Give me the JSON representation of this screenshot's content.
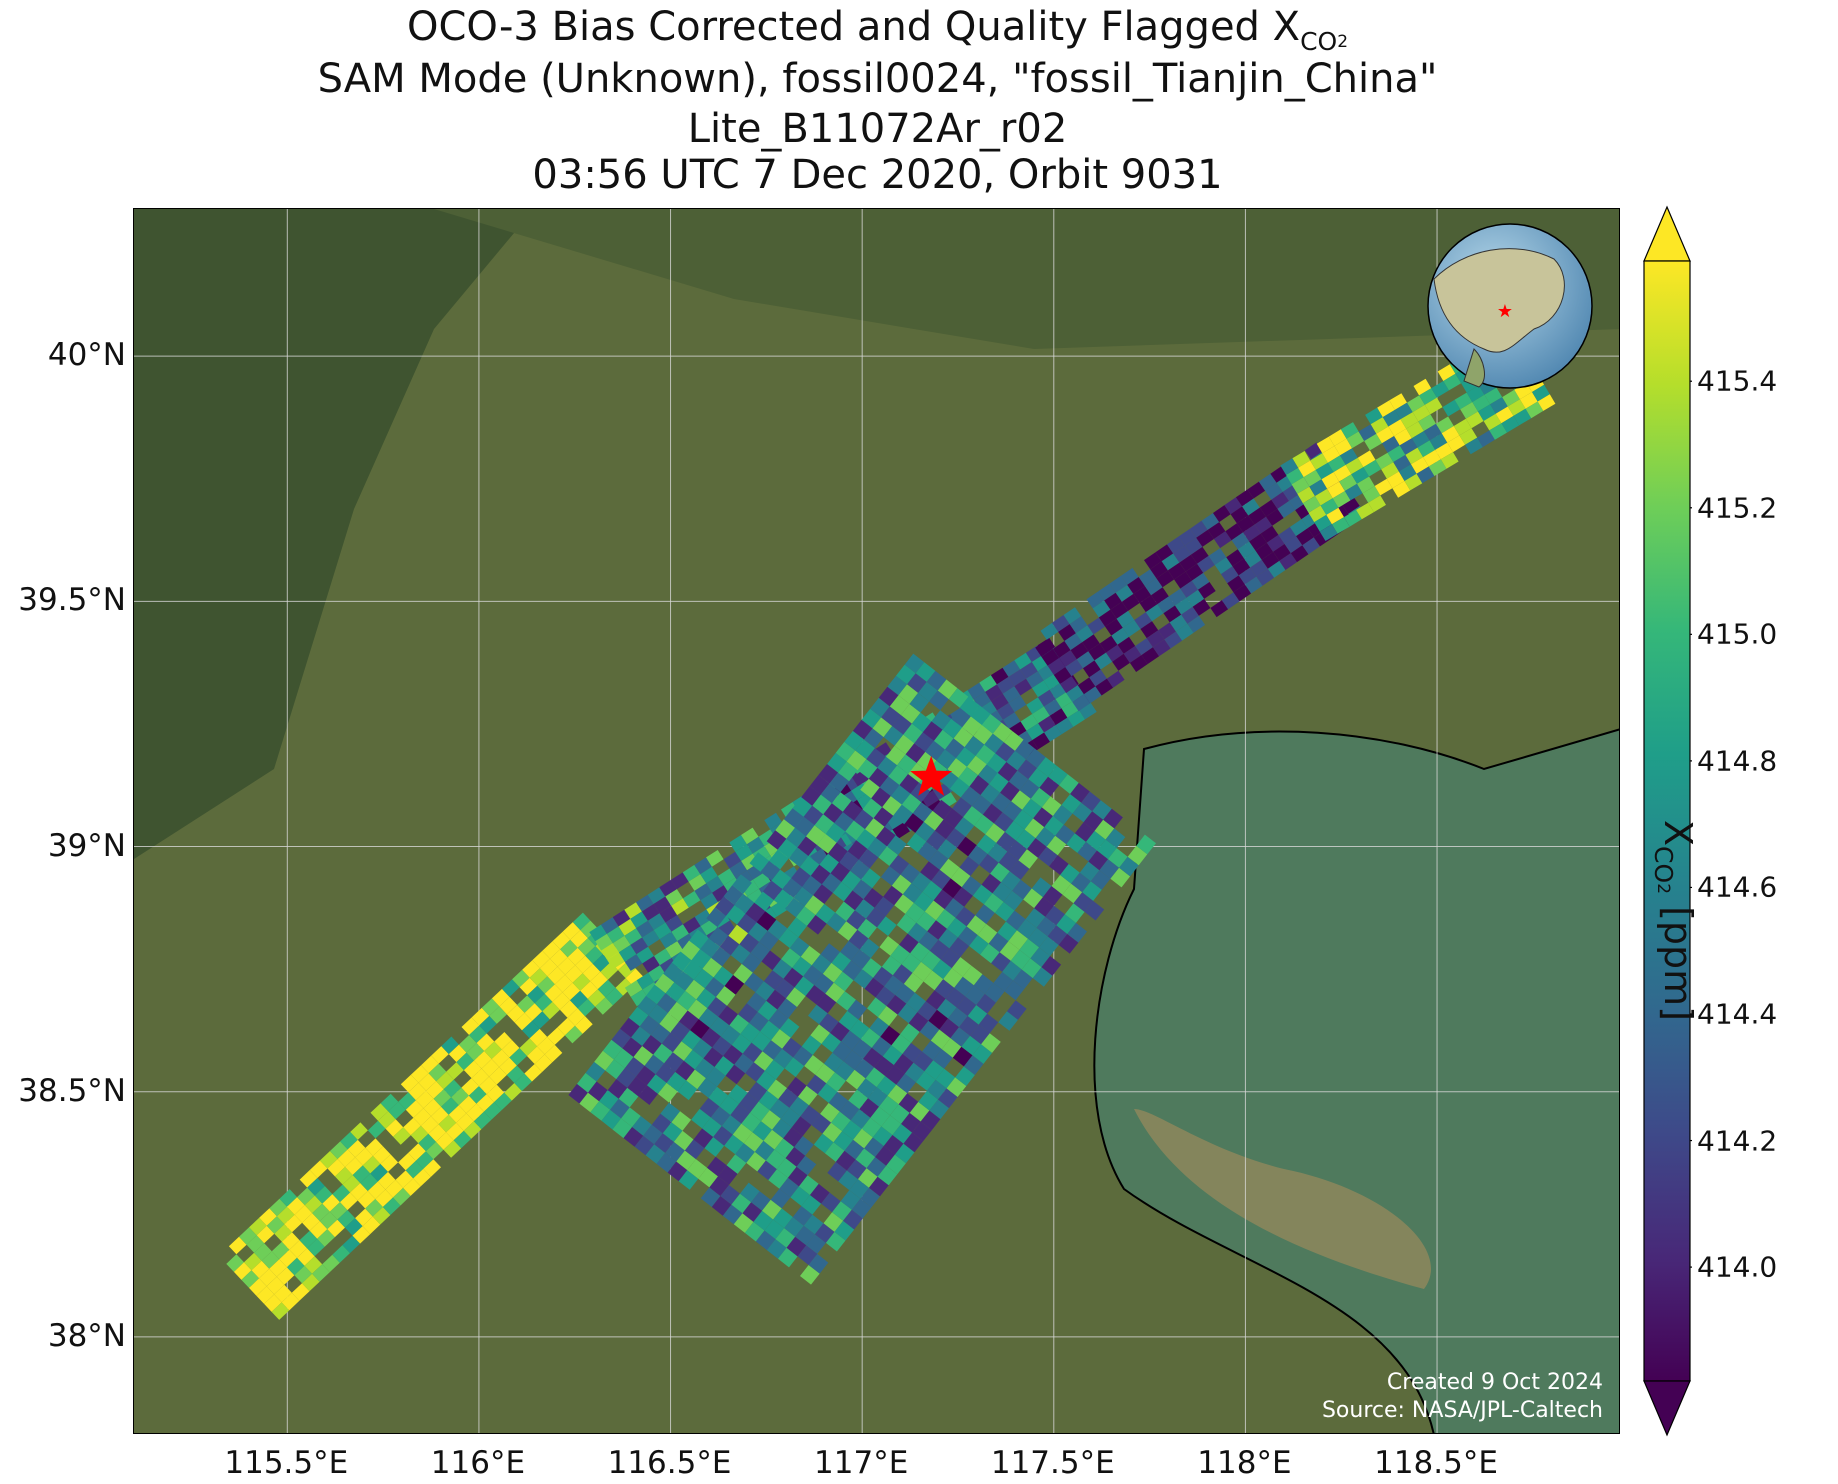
{
  "title": {
    "line1_main": "OCO-3 Bias Corrected and Quality Flagged X",
    "line1_sub": "CO",
    "line1_subsub": "2",
    "line2": "SAM Mode (Unknown), fossil0024, \"fossil_Tianjin_China\"",
    "line3": "Lite_B11072Ar_r02",
    "line4": "03:56 UTC 7 Dec 2020, Orbit 9031"
  },
  "map": {
    "lon_ticks": [
      "115.5°E",
      "116°E",
      "116.5°E",
      "117°E",
      "117.5°E",
      "118°E",
      "118.5°E"
    ],
    "lat_ticks": [
      "40°N",
      "39.5°N",
      "39°N",
      "38.5°N",
      "38°N"
    ],
    "extent": {
      "lon_min": 115.1,
      "lon_max": 118.98,
      "lat_min": 37.8,
      "lat_max": 40.3
    },
    "target_marker": {
      "name": "fossil_Tianjin_China",
      "lon": 117.18,
      "lat": 39.14,
      "color": "#ff0000",
      "shape": "star"
    },
    "inset_globe": {
      "marker_color": "#ff0000"
    },
    "credit_line1": "Created 9 Oct 2024",
    "credit_line2": "Source: NASA/JPL-Caltech"
  },
  "colorbar": {
    "label_main": "X",
    "label_sub": "CO",
    "label_subsub": "2",
    "label_unit": " [ppm]",
    "colormap": "viridis",
    "range": [
      413.82,
      415.59
    ],
    "ticks": [
      "415.4",
      "415.2",
      "415.0",
      "414.8",
      "414.6",
      "414.4",
      "414.2",
      "414.0"
    ],
    "tick_values": [
      415.4,
      415.2,
      415.0,
      414.8,
      414.6,
      414.4,
      414.2,
      414.0
    ],
    "extend": "both",
    "colors": [
      "#440154",
      "#482878",
      "#3e4989",
      "#31688e",
      "#26828e",
      "#1f9e89",
      "#35b779",
      "#6ece58",
      "#b5de2b",
      "#fde725"
    ]
  },
  "chart_data": {
    "type": "heatmap",
    "variable": "XCO2",
    "units": "ppm",
    "swaths": [
      {
        "lon_start": 115.4,
        "lat_start": 38.1,
        "lon_end": 116.35,
        "lat_end": 38.8,
        "value": 415.5
      },
      {
        "lon_start": 116.35,
        "lat_start": 38.75,
        "lon_end": 117.05,
        "lat_end": 39.1,
        "value": 414.7
      },
      {
        "lon_start": 116.85,
        "lat_start": 39.0,
        "lon_end": 117.55,
        "lat_end": 39.35,
        "value": 414.4
      },
      {
        "lon_start": 117.5,
        "lat_start": 39.35,
        "lon_end": 118.25,
        "lat_end": 39.75,
        "value": 414.0
      },
      {
        "lon_start": 118.15,
        "lat_start": 39.7,
        "lon_end": 118.75,
        "lat_end": 39.98,
        "value": 415.1
      },
      {
        "lon_start": 116.55,
        "lat_start": 38.3,
        "lon_end": 117.45,
        "lat_end": 39.2,
        "value": 414.6
      }
    ]
  }
}
